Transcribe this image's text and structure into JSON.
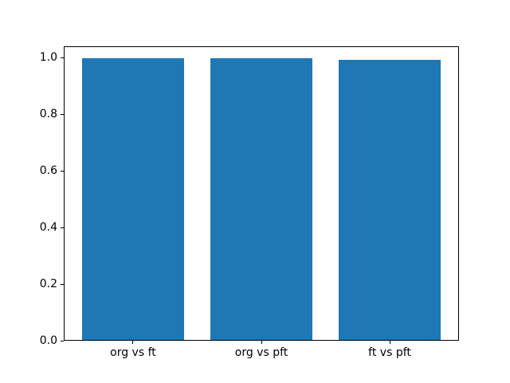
{
  "chart_data": {
    "type": "bar",
    "title": "",
    "xlabel": "",
    "ylabel": "",
    "categories": [
      "org vs ft",
      "org vs pft",
      "ft vs pft"
    ],
    "values": [
      0.996,
      0.995,
      0.99
    ],
    "bar_color": "#1f77b4",
    "bar_width": 0.8,
    "xlim": [
      -0.54,
      2.54
    ],
    "ylim": [
      0,
      1.041
    ],
    "yticks": [
      0.0,
      0.2,
      0.4,
      0.6,
      0.8,
      1.0
    ],
    "ytick_labels": [
      "0.0",
      "0.2",
      "0.4",
      "0.6",
      "0.8",
      "1.0"
    ],
    "grid": false,
    "legend": null,
    "spine_color": "#000000",
    "background_color": "#ffffff"
  }
}
